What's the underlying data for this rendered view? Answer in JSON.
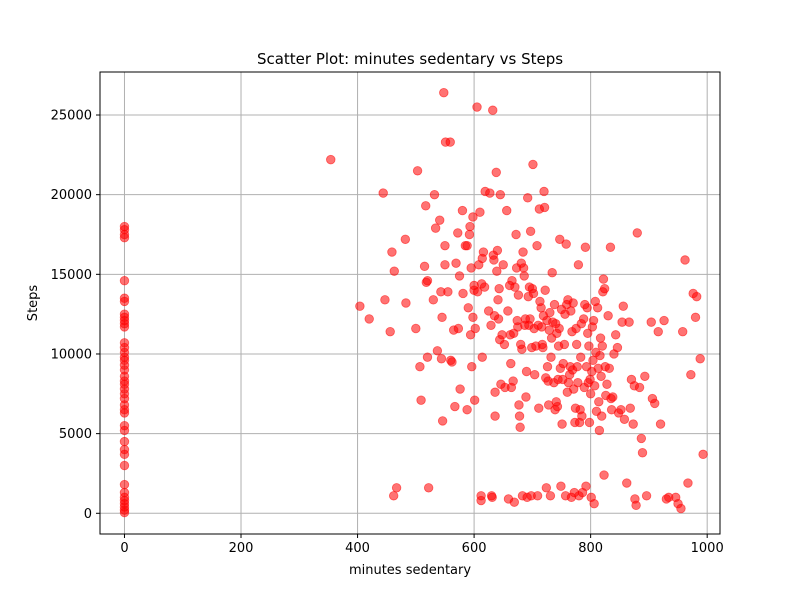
{
  "chart_data": {
    "type": "scatter",
    "title": "Scatter Plot: minutes sedentary vs Steps",
    "xlabel": "minutes sedentary",
    "ylabel": "Steps",
    "xlim": [
      -42,
      1022
    ],
    "ylim": [
      -1300,
      27700
    ],
    "xticks": [
      0,
      200,
      400,
      600,
      800,
      1000
    ],
    "yticks": [
      0,
      5000,
      10000,
      15000,
      20000,
      25000
    ],
    "grid": true,
    "marker_color": "#ff0000",
    "marker_alpha": 0.55,
    "points": [
      [
        0,
        18000
      ],
      [
        0,
        17800
      ],
      [
        0,
        17500
      ],
      [
        0,
        17300
      ],
      [
        0,
        14600
      ],
      [
        0,
        13500
      ],
      [
        0,
        13300
      ],
      [
        0,
        12500
      ],
      [
        0,
        12300
      ],
      [
        0,
        12100
      ],
      [
        0,
        11900
      ],
      [
        0,
        11700
      ],
      [
        0,
        10700
      ],
      [
        0,
        10400
      ],
      [
        0,
        10100
      ],
      [
        0,
        9800
      ],
      [
        0,
        9600
      ],
      [
        0,
        9300
      ],
      [
        0,
        9000
      ],
      [
        0,
        8600
      ],
      [
        0,
        8300
      ],
      [
        0,
        8100
      ],
      [
        0,
        7800
      ],
      [
        0,
        7500
      ],
      [
        0,
        7200
      ],
      [
        0,
        6800
      ],
      [
        0,
        6500
      ],
      [
        0,
        6300
      ],
      [
        0,
        5500
      ],
      [
        0,
        5200
      ],
      [
        0,
        4500
      ],
      [
        0,
        4000
      ],
      [
        0,
        3700
      ],
      [
        0,
        3000
      ],
      [
        0,
        1800
      ],
      [
        0,
        1300
      ],
      [
        0,
        1000
      ],
      [
        0,
        800
      ],
      [
        0,
        600
      ],
      [
        0,
        400
      ],
      [
        0,
        200
      ],
      [
        0,
        50
      ],
      [
        354,
        22200
      ],
      [
        404,
        13000
      ],
      [
        420,
        12200
      ],
      [
        444,
        20100
      ],
      [
        447,
        13400
      ],
      [
        456,
        11400
      ],
      [
        459,
        16400
      ],
      [
        463,
        15200
      ],
      [
        462,
        1100
      ],
      [
        467,
        1600
      ],
      [
        482,
        17200
      ],
      [
        483,
        13200
      ],
      [
        500,
        11600
      ],
      [
        503,
        21500
      ],
      [
        507,
        9200
      ],
      [
        509,
        7100
      ],
      [
        515,
        15500
      ],
      [
        517,
        19300
      ],
      [
        518,
        14500
      ],
      [
        520,
        14600
      ],
      [
        520,
        9800
      ],
      [
        522,
        1600
      ],
      [
        530,
        13400
      ],
      [
        532,
        20000
      ],
      [
        534,
        17900
      ],
      [
        537,
        10200
      ],
      [
        541,
        18400
      ],
      [
        543,
        13900
      ],
      [
        544,
        9700
      ],
      [
        545,
        12300
      ],
      [
        546,
        5800
      ],
      [
        548,
        26400
      ],
      [
        550,
        15600
      ],
      [
        550,
        16800
      ],
      [
        551,
        23300
      ],
      [
        555,
        13900
      ],
      [
        559,
        23300
      ],
      [
        560,
        9600
      ],
      [
        562,
        9500
      ],
      [
        565,
        11500
      ],
      [
        567,
        6700
      ],
      [
        569,
        15700
      ],
      [
        572,
        17600
      ],
      [
        573,
        11600
      ],
      [
        575,
        14900
      ],
      [
        576,
        7800
      ],
      [
        580,
        19000
      ],
      [
        581,
        13800
      ],
      [
        585,
        16800
      ],
      [
        588,
        16800
      ],
      [
        588,
        6500
      ],
      [
        590,
        12900
      ],
      [
        592,
        17500
      ],
      [
        593,
        18000
      ],
      [
        594,
        11200
      ],
      [
        595,
        15400
      ],
      [
        596,
        9200
      ],
      [
        598,
        18600
      ],
      [
        598,
        12300
      ],
      [
        600,
        14300
      ],
      [
        600,
        14000
      ],
      [
        601,
        7100
      ],
      [
        602,
        11600
      ],
      [
        605,
        25500
      ],
      [
        606,
        13900
      ],
      [
        608,
        15600
      ],
      [
        610,
        18900
      ],
      [
        612,
        1100
      ],
      [
        612,
        800
      ],
      [
        613,
        14400
      ],
      [
        614,
        16000
      ],
      [
        614,
        9800
      ],
      [
        616,
        16400
      ],
      [
        618,
        14200
      ],
      [
        619,
        20200
      ],
      [
        625,
        12700
      ],
      [
        627,
        20100
      ],
      [
        629,
        11800
      ],
      [
        630,
        1100
      ],
      [
        631,
        1000
      ],
      [
        632,
        25300
      ],
      [
        633,
        16200
      ],
      [
        634,
        15900
      ],
      [
        635,
        12400
      ],
      [
        636,
        7600
      ],
      [
        636,
        6100
      ],
      [
        638,
        21400
      ],
      [
        639,
        15200
      ],
      [
        640,
        16500
      ],
      [
        641,
        13400
      ],
      [
        642,
        12200
      ],
      [
        643,
        14100
      ],
      [
        644,
        10900
      ],
      [
        645,
        20000
      ],
      [
        646,
        8100
      ],
      [
        648,
        11200
      ],
      [
        650,
        15600
      ],
      [
        652,
        10600
      ],
      [
        653,
        7900
      ],
      [
        656,
        19000
      ],
      [
        658,
        12700
      ],
      [
        659,
        900
      ],
      [
        661,
        14300
      ],
      [
        662,
        11200
      ],
      [
        663,
        9400
      ],
      [
        664,
        7900
      ],
      [
        665,
        14600
      ],
      [
        667,
        8300
      ],
      [
        668,
        11300
      ],
      [
        669,
        700
      ],
      [
        670,
        14200
      ],
      [
        672,
        17500
      ],
      [
        673,
        15400
      ],
      [
        674,
        12100
      ],
      [
        675,
        11700
      ],
      [
        676,
        13700
      ],
      [
        677,
        6800
      ],
      [
        678,
        6100
      ],
      [
        679,
        5400
      ],
      [
        680,
        10600
      ],
      [
        681,
        15700
      ],
      [
        682,
        10300
      ],
      [
        683,
        1100
      ],
      [
        684,
        16400
      ],
      [
        685,
        15400
      ],
      [
        686,
        14900
      ],
      [
        687,
        11800
      ],
      [
        688,
        12200
      ],
      [
        689,
        7300
      ],
      [
        690,
        8900
      ],
      [
        691,
        1000
      ],
      [
        692,
        19800
      ],
      [
        693,
        13600
      ],
      [
        694,
        11800
      ],
      [
        695,
        14200
      ],
      [
        696,
        12200
      ],
      [
        697,
        17700
      ],
      [
        698,
        1100
      ],
      [
        699,
        10400
      ],
      [
        700,
        14100
      ],
      [
        701,
        21900
      ],
      [
        702,
        13800
      ],
      [
        703,
        11600
      ],
      [
        704,
        8700
      ],
      [
        706,
        10500
      ],
      [
        708,
        16800
      ],
      [
        709,
        1100
      ],
      [
        710,
        11800
      ],
      [
        711,
        6600
      ],
      [
        712,
        19100
      ],
      [
        713,
        13300
      ],
      [
        715,
        12900
      ],
      [
        716,
        11700
      ],
      [
        717,
        10600
      ],
      [
        718,
        10400
      ],
      [
        719,
        12400
      ],
      [
        720,
        20200
      ],
      [
        721,
        19200
      ],
      [
        722,
        14000
      ],
      [
        723,
        8500
      ],
      [
        724,
        1600
      ],
      [
        725,
        12100
      ],
      [
        726,
        9200
      ],
      [
        727,
        8300
      ],
      [
        728,
        6800
      ],
      [
        729,
        11500
      ],
      [
        730,
        12600
      ],
      [
        731,
        1100
      ],
      [
        732,
        9800
      ],
      [
        733,
        11000
      ],
      [
        734,
        15100
      ],
      [
        735,
        12000
      ],
      [
        737,
        8200
      ],
      [
        738,
        13100
      ],
      [
        739,
        6500
      ],
      [
        740,
        11900
      ],
      [
        741,
        7000
      ],
      [
        742,
        11300
      ],
      [
        743,
        6700
      ],
      [
        744,
        8400
      ],
      [
        745,
        10500
      ],
      [
        746,
        11600
      ],
      [
        747,
        17200
      ],
      [
        748,
        9100
      ],
      [
        749,
        1700
      ],
      [
        750,
        12800
      ],
      [
        751,
        5600
      ],
      [
        752,
        8400
      ],
      [
        753,
        9400
      ],
      [
        755,
        10600
      ],
      [
        756,
        12500
      ],
      [
        757,
        1100
      ],
      [
        758,
        16900
      ],
      [
        759,
        13100
      ],
      [
        760,
        7600
      ],
      [
        761,
        13400
      ],
      [
        762,
        8200
      ],
      [
        764,
        8700
      ],
      [
        765,
        9200
      ],
      [
        766,
        12700
      ],
      [
        767,
        1000
      ],
      [
        768,
        11400
      ],
      [
        769,
        9000
      ],
      [
        770,
        13200
      ],
      [
        771,
        7800
      ],
      [
        772,
        1300
      ],
      [
        773,
        5700
      ],
      [
        774,
        6600
      ],
      [
        775,
        11600
      ],
      [
        776,
        10600
      ],
      [
        777,
        9200
      ],
      [
        778,
        8200
      ],
      [
        779,
        15600
      ],
      [
        780,
        1100
      ],
      [
        781,
        5700
      ],
      [
        782,
        6500
      ],
      [
        783,
        9800
      ],
      [
        784,
        11900
      ],
      [
        785,
        6100
      ],
      [
        786,
        1300
      ],
      [
        788,
        12200
      ],
      [
        789,
        7900
      ],
      [
        790,
        13100
      ],
      [
        791,
        16700
      ],
      [
        792,
        1700
      ],
      [
        793,
        9200
      ],
      [
        794,
        12900
      ],
      [
        795,
        11300
      ],
      [
        796,
        8200
      ],
      [
        797,
        10500
      ],
      [
        798,
        5700
      ],
      [
        799,
        8400
      ],
      [
        800,
        7500
      ],
      [
        801,
        1000
      ],
      [
        802,
        8900
      ],
      [
        803,
        11700
      ],
      [
        804,
        9600
      ],
      [
        805,
        12100
      ],
      [
        806,
        600
      ],
      [
        807,
        8000
      ],
      [
        808,
        13300
      ],
      [
        809,
        10100
      ],
      [
        810,
        6400
      ],
      [
        812,
        12900
      ],
      [
        813,
        9100
      ],
      [
        814,
        7000
      ],
      [
        815,
        5200
      ],
      [
        816,
        9900
      ],
      [
        817,
        11000
      ],
      [
        818,
        8600
      ],
      [
        819,
        6100
      ],
      [
        820,
        10500
      ],
      [
        821,
        13900
      ],
      [
        822,
        14700
      ],
      [
        823,
        2400
      ],
      [
        824,
        14100
      ],
      [
        825,
        9200
      ],
      [
        826,
        7400
      ],
      [
        828,
        8100
      ],
      [
        830,
        12400
      ],
      [
        832,
        9100
      ],
      [
        834,
        16700
      ],
      [
        835,
        7200
      ],
      [
        836,
        6500
      ],
      [
        838,
        7300
      ],
      [
        840,
        10000
      ],
      [
        843,
        11200
      ],
      [
        846,
        10400
      ],
      [
        848,
        6300
      ],
      [
        852,
        6500
      ],
      [
        854,
        12000
      ],
      [
        856,
        13000
      ],
      [
        858,
        5900
      ],
      [
        862,
        1900
      ],
      [
        866,
        12000
      ],
      [
        868,
        6600
      ],
      [
        870,
        8400
      ],
      [
        873,
        5600
      ],
      [
        875,
        8000
      ],
      [
        876,
        900
      ],
      [
        878,
        500
      ],
      [
        880,
        17600
      ],
      [
        884,
        7900
      ],
      [
        887,
        4700
      ],
      [
        889,
        3800
      ],
      [
        893,
        8600
      ],
      [
        896,
        1100
      ],
      [
        904,
        12000
      ],
      [
        906,
        7200
      ],
      [
        910,
        6900
      ],
      [
        916,
        11400
      ],
      [
        920,
        5600
      ],
      [
        926,
        12100
      ],
      [
        930,
        900
      ],
      [
        934,
        1000
      ],
      [
        946,
        1000
      ],
      [
        950,
        600
      ],
      [
        955,
        300
      ],
      [
        958,
        11400
      ],
      [
        962,
        15900
      ],
      [
        967,
        1900
      ],
      [
        972,
        8700
      ],
      [
        976,
        13800
      ],
      [
        980,
        12300
      ],
      [
        982,
        13600
      ],
      [
        988,
        9700
      ],
      [
        993,
        3700
      ]
    ]
  }
}
